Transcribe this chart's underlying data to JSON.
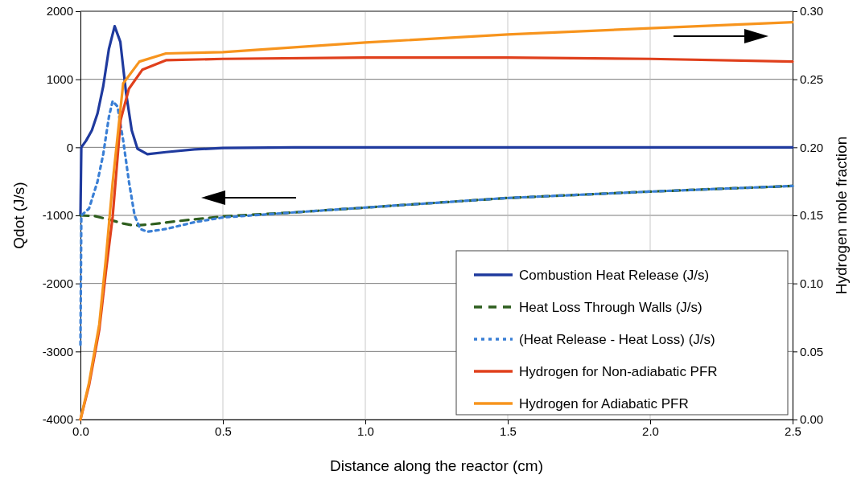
{
  "chart_data": {
    "type": "line",
    "xlabel": "Distance along the reactor (cm)",
    "ylabel": "Qdot  (J/s)",
    "y2label": "Hydrogen mole fraction",
    "xlim": [
      0,
      2.5
    ],
    "xticks": [
      {
        "value": 0,
        "label": "0.0"
      },
      {
        "value": 0.5,
        "label": "0.5"
      },
      {
        "value": 1,
        "label": "1.0"
      },
      {
        "value": 1.5,
        "label": "1.5"
      },
      {
        "value": 2,
        "label": "2.0"
      },
      {
        "value": 2.5,
        "label": "2.5"
      }
    ],
    "ylim": [
      -4000,
      2000
    ],
    "yticks": [
      -4000,
      -3000,
      -2000,
      -1000,
      0,
      1000,
      2000
    ],
    "y2lim": [
      0,
      0.3
    ],
    "y2ticks": [
      {
        "value": 0,
        "label": "0.00"
      },
      {
        "value": 0.05,
        "label": "0.05"
      },
      {
        "value": 0.1,
        "label": "0.10"
      },
      {
        "value": 0.15,
        "label": "0.15"
      },
      {
        "value": 0.2,
        "label": "0.20"
      },
      {
        "value": 0.25,
        "label": "0.25"
      },
      {
        "value": 0.3,
        "label": "0.30"
      }
    ],
    "grid": true,
    "legend": "bottom right",
    "marker": "none",
    "series": [
      {
        "name": "Combustion Heat Release (J/s)",
        "color": "#1f3a9e",
        "line_style": "solid",
        "x": [
          0,
          0.003,
          0.02,
          0.04,
          0.06,
          0.08,
          0.1,
          0.12,
          0.14,
          0.16,
          0.18,
          0.2,
          0.235,
          0.3,
          0.4,
          0.5,
          0.75,
          1,
          2.5
        ],
        "values": [
          -1000,
          0,
          100,
          250,
          500,
          900,
          1450,
          1780,
          1550,
          800,
          250,
          -20,
          -100,
          -70,
          -30,
          -10,
          0,
          0,
          0
        ]
      },
      {
        "name": "Heat Loss Through Walls (J/s)",
        "color": "#2e5e1e",
        "line_style": "dashed",
        "x": [
          0,
          0.05,
          0.1,
          0.15,
          0.19,
          0.25,
          0.35,
          0.5,
          0.75,
          1,
          1.5,
          2,
          2.5
        ],
        "values": [
          -1000,
          -1010,
          -1060,
          -1120,
          -1150,
          -1130,
          -1080,
          -1015,
          -956,
          -885,
          -744,
          -650,
          -567
        ]
      },
      {
        "name": "(Heat Release  -  Heat Loss) (J/s)",
        "color": "#3a7fd5",
        "line_style": "dotted",
        "x": [
          0,
          0.003,
          0.03,
          0.06,
          0.08,
          0.1,
          0.113,
          0.13,
          0.15,
          0.17,
          0.19,
          0.21,
          0.235,
          0.3,
          0.4,
          0.5,
          0.75,
          1,
          1.5,
          2,
          2.5
        ],
        "values": [
          -2900,
          -1000,
          -900,
          -500,
          -100,
          450,
          680,
          600,
          100,
          -500,
          -1000,
          -1200,
          -1240,
          -1200,
          -1100,
          -1030,
          -956,
          -885,
          -744,
          -650,
          -567
        ]
      },
      {
        "name": "Hydrogen for Non-adiabatic PFR",
        "color": "#e0401c",
        "line_style": "solid",
        "axis": "y2",
        "x": [
          0,
          0.03,
          0.066,
          0.09,
          0.113,
          0.141,
          0.17,
          0.217,
          0.3,
          0.5,
          1,
          1.5,
          2,
          2.5
        ],
        "values": [
          0,
          0.025,
          0.066,
          0.11,
          0.149,
          0.22,
          0.243,
          0.257,
          0.264,
          0.265,
          0.266,
          0.266,
          0.265,
          0.263
        ]
      },
      {
        "name": "Hydrogen for Adiabatic PFR",
        "color": "#f7941d",
        "line_style": "solid",
        "axis": "y2",
        "x": [
          0,
          0.03,
          0.066,
          0.09,
          0.113,
          0.15,
          0.207,
          0.3,
          0.5,
          1,
          1.5,
          2,
          2.5
        ],
        "values": [
          0,
          0.027,
          0.07,
          0.12,
          0.174,
          0.247,
          0.263,
          0.269,
          0.27,
          0.277,
          0.283,
          0.2875,
          0.292
        ]
      }
    ]
  }
}
